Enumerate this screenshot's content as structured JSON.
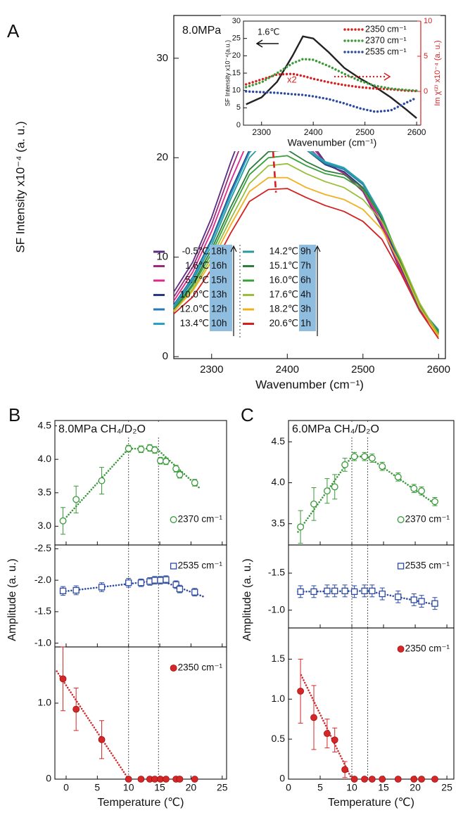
{
  "chart_data": [
    {
      "type": "line",
      "label": "A",
      "title": "8.0MPa CH₄/D₂O",
      "xlabel": "Wavenumber (cm⁻¹)",
      "ylabel": "SF Intensity x10⁻⁴ (a. u.)",
      "xlim": [
        2250,
        2609
      ],
      "xticks": [
        2300,
        2400,
        2500,
        2600
      ],
      "ylim": [
        -0.2,
        34.3
      ],
      "yticks": [
        0,
        10,
        20,
        30
      ],
      "x": [
        2250,
        2275,
        2300,
        2325,
        2350,
        2375,
        2400,
        2425,
        2450,
        2475,
        2500,
        2525,
        2550,
        2575,
        2600
      ],
      "series": [
        {
          "name": "-0.5℃",
          "hours": "18h",
          "color": "#5b2c83",
          "values": [
            6.5,
            9.5,
            14.0,
            19.5,
            24.5,
            27.0,
            25.2,
            22.2,
            19.6,
            18.4,
            16.6,
            13.0,
            8.5,
            4.6,
            2.4
          ]
        },
        {
          "name": "1.6℃",
          "hours": "16h",
          "color": "#9b2a7a",
          "values": [
            6.0,
            9.0,
            13.3,
            18.6,
            23.4,
            25.6,
            24.3,
            21.8,
            19.5,
            18.4,
            16.6,
            13.2,
            8.6,
            4.6,
            2.3
          ]
        },
        {
          "name": "5.7℃",
          "hours": "15h",
          "color": "#e0288a",
          "values": [
            5.6,
            8.5,
            12.6,
            17.6,
            22.0,
            24.0,
            23.2,
            21.3,
            19.4,
            18.5,
            16.9,
            13.4,
            8.8,
            4.7,
            2.3
          ]
        },
        {
          "name": "10.0℃",
          "hours": "13h",
          "color": "#263a80",
          "values": [
            5.2,
            8.0,
            11.8,
            16.6,
            20.8,
            22.8,
            22.4,
            20.8,
            19.3,
            18.6,
            17.0,
            13.8,
            9.0,
            4.8,
            2.5
          ]
        },
        {
          "name": "12.0℃",
          "hours": "12h",
          "color": "#2a78b8",
          "values": [
            5.0,
            7.8,
            11.6,
            16.4,
            20.6,
            22.6,
            22.3,
            20.8,
            19.4,
            18.8,
            17.3,
            14.0,
            9.2,
            4.8,
            2.6
          ]
        },
        {
          "name": "13.4℃",
          "hours": "10h",
          "color": "#27a3c0",
          "values": [
            5.1,
            7.9,
            11.6,
            16.2,
            20.5,
            22.5,
            22.5,
            21.0,
            19.6,
            19.0,
            17.5,
            14.2,
            9.4,
            4.9,
            2.7
          ]
        },
        {
          "name": "14.2℃",
          "hours": "9h",
          "color": "#2a9a9a",
          "values": [
            4.9,
            7.6,
            11.2,
            15.8,
            20.0,
            22.0,
            22.2,
            20.8,
            19.5,
            18.9,
            17.4,
            14.0,
            9.4,
            5.0,
            2.6
          ]
        },
        {
          "name": "15.1℃",
          "hours": "7h",
          "color": "#2e7d3a",
          "values": [
            4.7,
            7.3,
            10.8,
            15.0,
            18.8,
            20.6,
            20.8,
            19.6,
            18.7,
            18.3,
            17.0,
            14.0,
            9.5,
            5.1,
            2.5
          ]
        },
        {
          "name": "16.0℃",
          "hours": "6h",
          "color": "#3aa03a",
          "values": [
            4.6,
            7.1,
            10.4,
            14.5,
            18.3,
            20.0,
            20.2,
            19.2,
            18.4,
            18.0,
            16.8,
            14.0,
            9.6,
            5.2,
            2.4
          ]
        },
        {
          "name": "17.6℃",
          "hours": "4h",
          "color": "#98be3a",
          "values": [
            4.5,
            6.8,
            10.0,
            13.8,
            17.4,
            19.2,
            19.4,
            18.4,
            17.6,
            17.0,
            15.8,
            13.6,
            9.8,
            5.4,
            2.2
          ]
        },
        {
          "name": "18.2℃",
          "hours": "3h",
          "color": "#f0b020",
          "values": [
            4.6,
            6.6,
            9.6,
            13.2,
            16.6,
            18.0,
            18.0,
            17.0,
            16.3,
            15.8,
            14.8,
            12.8,
            9.2,
            5.0,
            2.0
          ]
        },
        {
          "name": "20.6℃",
          "hours": "1h",
          "color": "#d42020",
          "values": [
            4.3,
            6.0,
            8.8,
            12.4,
            15.6,
            16.8,
            16.9,
            16.0,
            15.2,
            14.6,
            13.6,
            11.8,
            8.4,
            4.6,
            1.8
          ]
        }
      ],
      "peak_line": {
        "x": [
          2373,
          2385
        ],
        "y": [
          29.5,
          16.5
        ],
        "color": "#d42020"
      }
    },
    {
      "type": "line",
      "xlabel": "Wavenumber (cm⁻¹)",
      "ylabel": "SF Intensity x10⁻⁴(a.u.)",
      "y2label": "Im χ⁽²⁾ x10⁻⁴ (a. u.)",
      "xlim": [
        2265,
        2608
      ],
      "xticks": [
        2300,
        2400,
        2500,
        2600
      ],
      "ylim": [
        0,
        30
      ],
      "yticks": [
        0,
        5,
        10,
        15,
        20,
        25,
        30
      ],
      "y2lim": [
        -4.8,
        10
      ],
      "y2ticks": [
        0,
        5,
        10
      ],
      "y2color": "#d42020",
      "x": [
        2270,
        2300,
        2330,
        2360,
        2380,
        2400,
        2430,
        2460,
        2490,
        2520,
        2550,
        2580,
        2600
      ],
      "series": [
        {
          "name": "1.6℃",
          "color": "#222222",
          "style": "solid",
          "values": [
            6.0,
            8.0,
            12.5,
            20.0,
            25.6,
            25.0,
            21.0,
            16.5,
            13.5,
            11.0,
            8.0,
            4.5,
            2.0
          ]
        },
        {
          "name": "2350 cm⁻¹",
          "color": "#d42020",
          "style": "dotted",
          "axis": "y2",
          "note": "x2",
          "values": [
            1.0,
            1.7,
            2.4,
            2.5,
            2.2,
            1.8,
            1.3,
            0.9,
            0.6,
            0.4,
            0.3,
            0.1,
            0.05
          ]
        },
        {
          "name": "2370 cm⁻¹",
          "color": "#3a9a3a",
          "style": "dotted",
          "axis": "y2",
          "values": [
            0.6,
            1.3,
            2.6,
            4.0,
            4.6,
            4.5,
            3.6,
            2.5,
            1.5,
            0.8,
            0.4,
            0.2,
            0.1
          ]
        },
        {
          "name": "2535 cm⁻¹",
          "color": "#2b4aa0",
          "style": "dotted",
          "axis": "y2",
          "values": [
            0,
            -0.1,
            -0.2,
            -0.4,
            -0.5,
            -0.7,
            -1.1,
            -1.7,
            -2.4,
            -2.9,
            -2.7,
            -1.6,
            -0.9
          ]
        }
      ]
    },
    {
      "type": "scatter",
      "label": "B",
      "title": "8.0MPa CH₄/D₂O",
      "xlabel": "Temperature (℃)",
      "ylabel": "Amplitude (a. u.)",
      "xlim": [
        -1.8,
        25.7
      ],
      "xticks": [
        0,
        5,
        10,
        15,
        20,
        25
      ],
      "vlines": [
        10,
        14.8
      ],
      "panels": [
        {
          "name": "2370 cm⁻¹",
          "color": "#3a9a3a",
          "marker": "circle-open",
          "ylim": [
            2.72,
            4.58
          ],
          "yticks": [
            {
              "value": 3,
              "label": "3.0"
            },
            3.5,
            {
              "value": 4,
              "label": "4.0"
            },
            4.5
          ],
          "x": [
            -0.5,
            1.6,
            5.7,
            10.0,
            12.0,
            13.4,
            14.2,
            15.1,
            16.0,
            17.6,
            18.2,
            20.6
          ],
          "values": [
            3.08,
            3.4,
            3.68,
            4.16,
            4.15,
            4.17,
            4.14,
            3.98,
            3.97,
            3.86,
            3.77,
            3.65
          ],
          "errors": [
            0.2,
            0.2,
            0.2,
            0.05,
            0.05,
            0.05,
            0.05,
            0.05,
            0.05,
            0.05,
            0.05,
            0.05
          ],
          "fit": {
            "x": [
              -0.5,
              10,
              14.5,
              21.5
            ],
            "y": [
              3.08,
              4.16,
              4.16,
              3.56
            ]
          }
        },
        {
          "name": "2535 cm⁻¹",
          "color": "#2b4aa0",
          "marker": "square-open",
          "ylim": [
            -0.94,
            -2.56
          ],
          "yticks": [
            -2.5,
            {
              "value": -2,
              "label": "-2.0"
            },
            -1.5,
            {
              "value": -1,
              "label": "-1.0"
            }
          ],
          "x": [
            -0.5,
            1.6,
            5.7,
            10.0,
            12.0,
            13.4,
            14.2,
            15.1,
            16.0,
            17.6,
            18.2,
            20.6
          ],
          "values": [
            -1.83,
            -1.84,
            -1.89,
            -1.96,
            -1.96,
            -1.98,
            -2.0,
            -2.0,
            -2.01,
            -1.93,
            -1.86,
            -1.81
          ],
          "errors": [
            0.07,
            0.07,
            0.07,
            0.07,
            0.06,
            0.06,
            0.06,
            0.06,
            0.06,
            0.06,
            0.06,
            0.06
          ],
          "fit": {
            "x": [
              -0.5,
              15,
              22
            ],
            "y": [
              -1.82,
              -2.0,
              -1.74
            ]
          }
        },
        {
          "name": "2350 cm⁻¹",
          "color": "#d62728",
          "marker": "circle-filled",
          "ylim": [
            0,
            1.74
          ],
          "yticks": [
            0,
            {
              "value": 1,
              "label": "1.0"
            }
          ],
          "x": [
            -0.5,
            1.6,
            5.7,
            10.0,
            12.0,
            13.4,
            14.2,
            15.1,
            16.0,
            17.6,
            18.2,
            20.6
          ],
          "values": [
            1.32,
            0.92,
            0.52,
            0,
            0,
            0,
            0,
            0,
            0,
            0,
            0,
            0
          ],
          "errors": [
            0.42,
            0.28,
            0.25,
            0,
            0,
            0,
            0,
            0,
            0,
            0,
            0,
            0
          ],
          "fit": {
            "x": [
              -1.5,
              10
            ],
            "y": [
              1.42,
              0
            ]
          }
        }
      ]
    },
    {
      "type": "scatter",
      "label": "C",
      "title": "6.0MPa CH₄/D₂O",
      "xlabel": "Temperature (℃)",
      "ylabel": "Amplitude (a. u.)",
      "xlim": [
        0,
        26.1
      ],
      "xticks": [
        0,
        5,
        10,
        15,
        20,
        25
      ],
      "vlines": [
        10,
        12.5
      ],
      "panels": [
        {
          "name": "2370 cm⁻¹",
          "color": "#3a9a3a",
          "marker": "circle-open",
          "ylim": [
            3.24,
            4.76
          ],
          "yticks": [
            3.5,
            {
              "value": 4,
              "label": "4.0"
            },
            4.5
          ],
          "x": [
            1.9,
            4.0,
            6.1,
            7.3,
            8.9,
            10.4,
            12.0,
            13.2,
            14.8,
            17.3,
            19.8,
            21.0,
            23.1
          ],
          "values": [
            3.46,
            3.74,
            3.9,
            3.95,
            4.22,
            4.32,
            4.32,
            4.3,
            4.2,
            4.07,
            3.93,
            3.9,
            3.77
          ],
          "errors": [
            0.2,
            0.2,
            0.15,
            0.15,
            0.08,
            0.05,
            0.05,
            0.05,
            0.05,
            0.05,
            0.05,
            0.05,
            0.05
          ],
          "fit": {
            "x": [
              1.5,
              10,
              12.5,
              23.5
            ],
            "y": [
              3.4,
              4.32,
              4.32,
              3.72
            ]
          }
        },
        {
          "name": "2535 cm⁻¹",
          "color": "#2b4aa0",
          "marker": "square-open",
          "ylim": [
            -0.76,
            -1.88
          ],
          "yticks": [
            -1.5,
            {
              "value": -1,
              "label": "-1.0"
            }
          ],
          "x": [
            1.9,
            4.0,
            6.1,
            7.3,
            8.9,
            10.4,
            12.0,
            13.2,
            14.8,
            17.3,
            19.8,
            21.0,
            23.1
          ],
          "values": [
            -1.25,
            -1.25,
            -1.26,
            -1.26,
            -1.26,
            -1.25,
            -1.26,
            -1.26,
            -1.22,
            -1.18,
            -1.14,
            -1.12,
            -1.09
          ],
          "errors": [
            0.08,
            0.08,
            0.08,
            0.08,
            0.08,
            0.08,
            0.08,
            0.08,
            0.08,
            0.08,
            0.08,
            0.08,
            0.08
          ],
          "fit": {
            "x": [
              1.5,
              12.5,
              23.5
            ],
            "y": [
              -1.25,
              -1.26,
              -1.07
            ]
          }
        },
        {
          "name": "2350 cm⁻¹",
          "color": "#d62728",
          "marker": "circle-filled",
          "ylim": [
            0,
            1.89
          ],
          "yticks": [
            0,
            0.5,
            {
              "value": 1,
              "label": "1.0"
            },
            1.5
          ],
          "x": [
            1.9,
            4.0,
            6.1,
            7.3,
            8.9,
            10.4,
            12.0,
            13.2,
            14.8,
            17.3,
            19.8,
            21.0,
            23.1
          ],
          "values": [
            1.1,
            0.77,
            0.57,
            0.49,
            0.12,
            0,
            0,
            0,
            0,
            0,
            0,
            0,
            0
          ],
          "errors": [
            0.4,
            0.4,
            0.18,
            0.15,
            0.1,
            0,
            0,
            0,
            0,
            0,
            0,
            0,
            0
          ],
          "fit": {
            "x": [
              2,
              10
            ],
            "y": [
              1.3,
              0
            ]
          }
        }
      ]
    }
  ]
}
